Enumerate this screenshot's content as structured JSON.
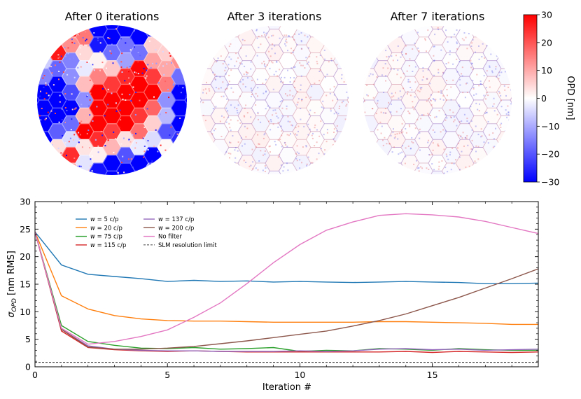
{
  "figure": {
    "panels": [
      {
        "title": "After 0 iterations",
        "variance": "high"
      },
      {
        "title": "After 3 iterations",
        "variance": "low"
      },
      {
        "title": "After 7 iterations",
        "variance": "low"
      }
    ],
    "colorbar": {
      "label": "OPD [nm]",
      "range": [
        -30,
        30
      ],
      "ticks": [
        "30",
        "20",
        "10",
        "0",
        "−10",
        "−20",
        "−30"
      ],
      "colormap": "bwr",
      "color_low": "#0000ff",
      "color_mid": "#ffffff",
      "color_high": "#ff0000"
    }
  },
  "chart_data": {
    "type": "line",
    "xlabel": "Iteration #",
    "ylabel_main": "σ",
    "ylabel_sub": "OPD",
    "ylabel_rest": " [nm RMS]",
    "xlim": [
      0,
      19
    ],
    "ylim": [
      0,
      30
    ],
    "xticks": [
      0,
      5,
      10,
      15
    ],
    "yticks": [
      0,
      5,
      10,
      15,
      20,
      25,
      30
    ],
    "legend_position": "upper-left",
    "x": [
      0,
      1,
      2,
      3,
      4,
      5,
      6,
      7,
      8,
      9,
      10,
      11,
      12,
      13,
      14,
      15,
      16,
      17,
      18,
      19
    ],
    "series": [
      {
        "name_var": "w",
        "name_rest": " = 5 c/p",
        "color": "#1f77b4",
        "style": "solid",
        "values": [
          24.5,
          18.5,
          16.8,
          16.4,
          16.0,
          15.5,
          15.7,
          15.5,
          15.6,
          15.4,
          15.5,
          15.4,
          15.3,
          15.4,
          15.5,
          15.4,
          15.3,
          15.1,
          15.1,
          15.2
        ]
      },
      {
        "name_var": "w",
        "name_rest": " = 20 c/p",
        "color": "#ff7f0e",
        "style": "solid",
        "values": [
          24.5,
          12.9,
          10.5,
          9.3,
          8.7,
          8.4,
          8.3,
          8.3,
          8.2,
          8.1,
          8.1,
          8.1,
          8.1,
          8.2,
          8.2,
          8.1,
          8.0,
          7.9,
          7.7,
          7.7
        ]
      },
      {
        "name_var": "w",
        "name_rest": " = 75 c/p",
        "color": "#2ca02c",
        "style": "solid",
        "values": [
          24.5,
          7.5,
          4.6,
          3.9,
          3.4,
          3.3,
          3.5,
          3.2,
          3.3,
          3.5,
          2.8,
          3.0,
          2.9,
          3.3,
          3.2,
          3.0,
          3.3,
          3.1,
          3.0,
          3.0
        ]
      },
      {
        "name_var": "w",
        "name_rest": " = 115 c/p",
        "color": "#d62728",
        "style": "solid",
        "values": [
          24.5,
          6.5,
          3.5,
          3.1,
          2.9,
          2.8,
          2.9,
          2.8,
          2.7,
          2.7,
          2.7,
          2.7,
          2.7,
          2.7,
          2.8,
          2.6,
          2.8,
          2.7,
          2.6,
          2.7
        ]
      },
      {
        "name_var": "w",
        "name_rest": " = 137 c/p",
        "color": "#9467bd",
        "style": "solid",
        "values": [
          24.5,
          6.8,
          3.8,
          3.2,
          3.0,
          2.9,
          2.9,
          2.8,
          2.8,
          2.8,
          2.9,
          2.8,
          2.9,
          3.2,
          3.3,
          3.1,
          3.2,
          3.0,
          3.1,
          3.2
        ]
      },
      {
        "name_var": "w",
        "name_rest": " = 200 c/p",
        "color": "#8c564b",
        "style": "solid",
        "values": [
          24.5,
          6.8,
          3.6,
          3.2,
          3.2,
          3.4,
          3.7,
          4.2,
          4.7,
          5.3,
          5.9,
          6.5,
          7.4,
          8.4,
          9.6,
          11.1,
          12.6,
          14.3,
          16.0,
          17.8
        ]
      },
      {
        "name": "No filter",
        "color": "#e377c2",
        "style": "solid",
        "values": [
          24.5,
          7.0,
          4.1,
          4.6,
          5.5,
          6.7,
          9.0,
          11.6,
          15.1,
          18.9,
          22.2,
          24.8,
          26.3,
          27.5,
          27.8,
          27.6,
          27.2,
          26.4,
          25.3,
          24.2
        ]
      },
      {
        "name": "SLM resolution limit",
        "color": "#000000",
        "style": "dashed",
        "values": [
          0.8,
          0.8,
          0.8,
          0.8,
          0.8,
          0.8,
          0.8,
          0.8,
          0.8,
          0.8,
          0.8,
          0.8,
          0.8,
          0.8,
          0.8,
          0.8,
          0.8,
          0.8,
          0.8,
          0.8
        ]
      }
    ]
  }
}
